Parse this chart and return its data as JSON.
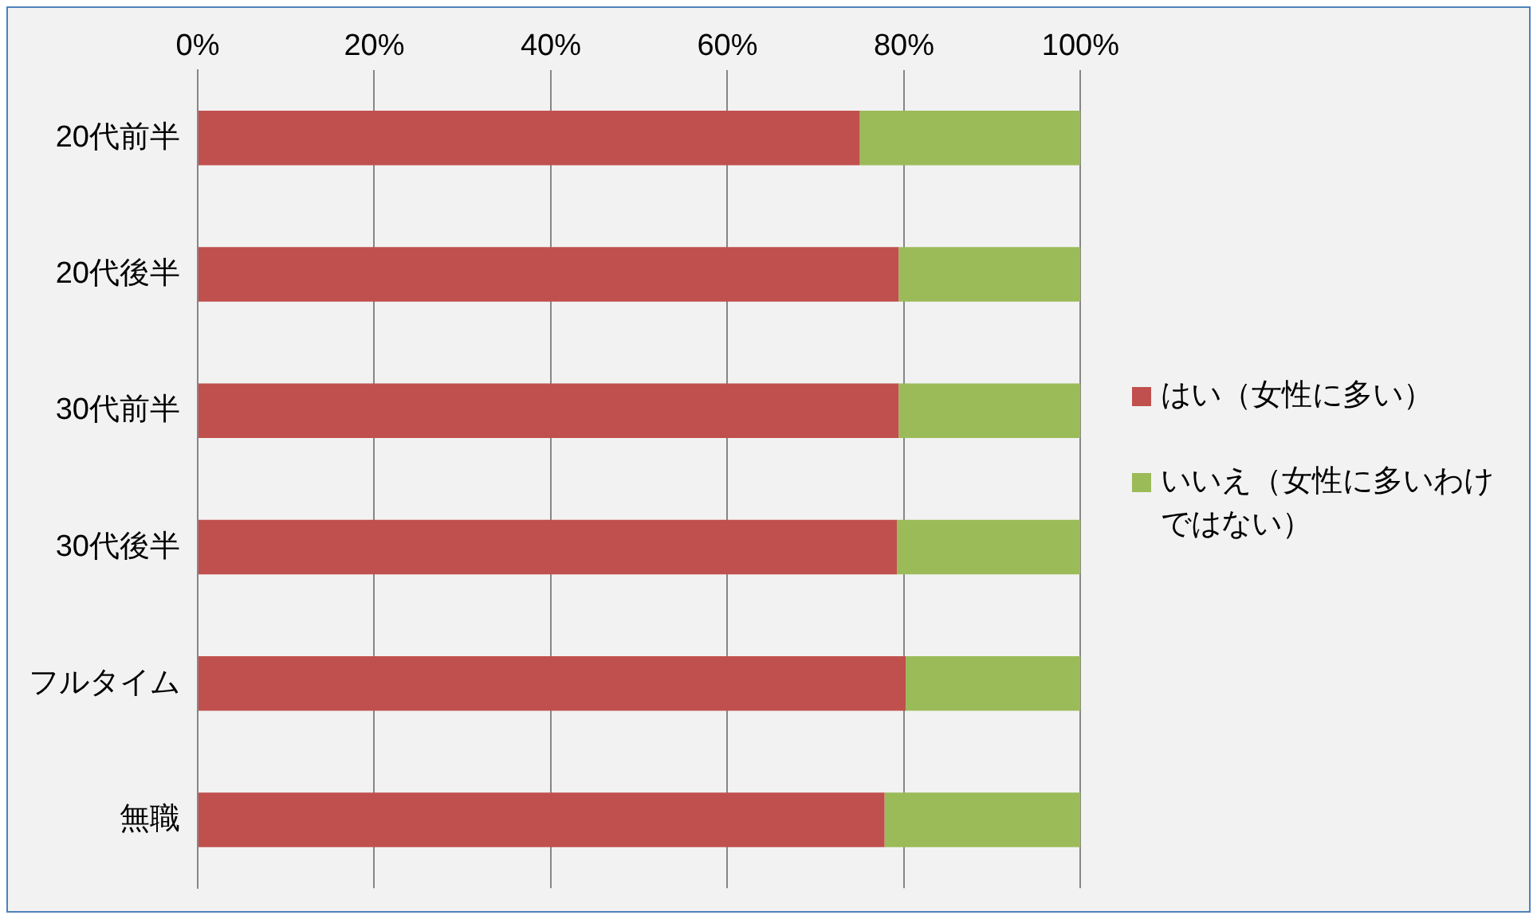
{
  "chart_data": {
    "type": "bar",
    "orientation": "horizontal",
    "stacked": true,
    "categories": [
      "20代前半",
      "20代後半",
      "30代前半",
      "30代後半",
      "フルタイム",
      "無職"
    ],
    "series": [
      {
        "name": "はい（女性に多い）",
        "color": "#c0504d",
        "values": [
          75,
          79.4,
          79.4,
          79.2,
          80.2,
          77.8
        ]
      },
      {
        "name": "いいえ（女性に多いわけではない）",
        "color": "#9bbb59",
        "values": [
          25,
          20.6,
          20.6,
          20.8,
          19.8,
          22.2
        ]
      }
    ],
    "xlim": [
      0,
      100
    ],
    "xticks": [
      {
        "value": 0,
        "label": "0%"
      },
      {
        "value": 20,
        "label": "20%"
      },
      {
        "value": 40,
        "label": "40%"
      },
      {
        "value": 60,
        "label": "60%"
      },
      {
        "value": 80,
        "label": "80%"
      },
      {
        "value": 100,
        "label": "100%"
      }
    ],
    "grid": "x",
    "legend": "right"
  }
}
